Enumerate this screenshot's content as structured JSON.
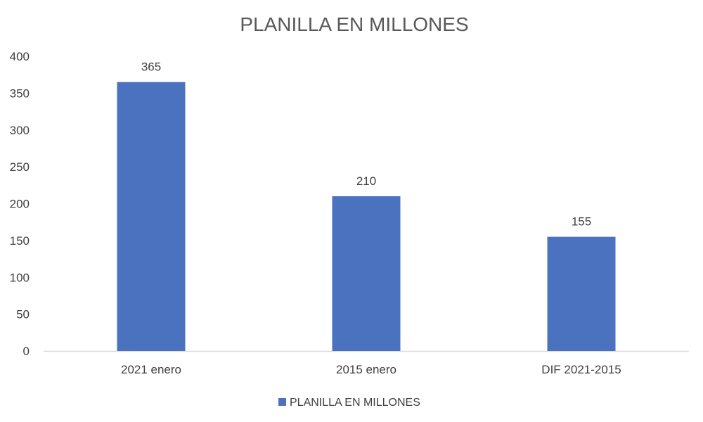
{
  "chart_data": {
    "type": "bar",
    "title": "PLANILLA EN MILLONES",
    "categories": [
      "2021 enero",
      "2015 enero",
      "DIF 2021-2015"
    ],
    "series": [
      {
        "name": "PLANILLA EN MILLONES",
        "values": [
          365,
          210,
          155
        ],
        "color": "#4a72be"
      }
    ],
    "data_labels": [
      "365",
      "210",
      "155"
    ],
    "yticks": [
      "0",
      "50",
      "100",
      "150",
      "200",
      "250",
      "300",
      "350",
      "400"
    ],
    "ylim": [
      0,
      400
    ],
    "xlabel": "",
    "ylabel": "",
    "grid": false,
    "legend_position": "bottom",
    "axis_color": "#d9d9d9"
  }
}
